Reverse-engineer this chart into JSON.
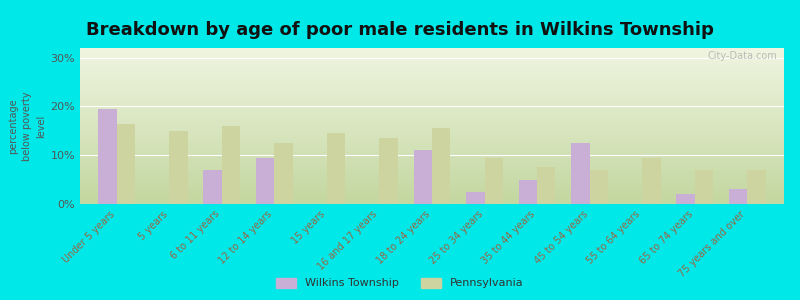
{
  "title": "Breakdown by age of poor male residents in Wilkins Township",
  "categories": [
    "Under 5 years",
    "5 years",
    "6 to 11 years",
    "12 to 14 years",
    "15 years",
    "16 and 17 years",
    "18 to 24 years",
    "25 to 34 years",
    "35 to 44 years",
    "45 to 54 years",
    "55 to 64 years",
    "65 to 74 years",
    "75 years and over"
  ],
  "wilkins": [
    19.5,
    0,
    7.0,
    9.5,
    0,
    0,
    11.0,
    2.5,
    5.0,
    12.5,
    0,
    2.0,
    3.0
  ],
  "pennsylvania": [
    16.5,
    15.0,
    16.0,
    12.5,
    14.5,
    13.5,
    15.5,
    9.5,
    7.5,
    7.0,
    9.5,
    7.0,
    7.0
  ],
  "wilkins_color": "#c9aed6",
  "pennsylvania_color": "#cdd4a0",
  "ylabel": "percentage\nbelow poverty\nlevel",
  "ylim": [
    0,
    32
  ],
  "yticks": [
    0,
    10,
    20,
    30
  ],
  "ytick_labels": [
    "0%",
    "10%",
    "20%",
    "30%"
  ],
  "outer_bg": "#00e8e8",
  "bar_width": 0.35,
  "title_fontsize": 13,
  "legend_labels": [
    "Wilkins Township",
    "Pennsylvania"
  ],
  "watermark": "City-Data.com",
  "tick_color": "#996644",
  "ylabel_color": "#555555",
  "ytick_color": "#555555"
}
